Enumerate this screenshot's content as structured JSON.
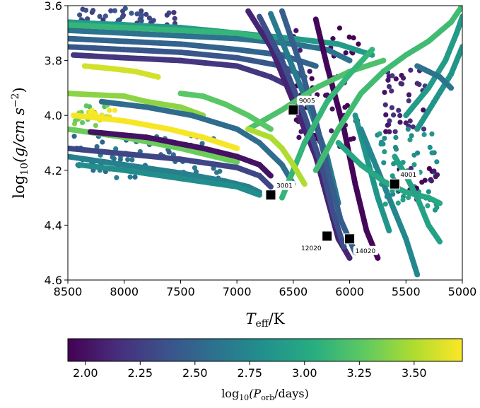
{
  "chart_data": {
    "type": "scatter",
    "xlabel_main": "T",
    "xlabel_sub": "eff",
    "xlabel_unit": "/K",
    "ylabel_pre": "log",
    "ylabel_sub": "10",
    "ylabel_body": "(g/cm s",
    "ylabel_sup": "−2",
    "ylabel_close": ")",
    "colorbar_label_pre": "log",
    "colorbar_label_sub": "10",
    "colorbar_label_body": "(P",
    "colorbar_label_sub2": "orb",
    "colorbar_label_close": "/days)",
    "xlim": [
      8500,
      5000
    ],
    "ylim": [
      4.6,
      3.6
    ],
    "x_ticks": [
      8500,
      8000,
      7500,
      7000,
      6500,
      6000,
      5500,
      5000
    ],
    "x_tick_labels": [
      "8500",
      "8000",
      "7500",
      "7000",
      "6500",
      "6000",
      "5500",
      "5000"
    ],
    "y_ticks": [
      3.6,
      3.8,
      4.0,
      4.2,
      4.4,
      4.6
    ],
    "y_tick_labels": [
      "3.6",
      "3.8",
      "4.0",
      "4.2",
      "4.4",
      "4.6"
    ],
    "colorbar_range": [
      1.92,
      3.72
    ],
    "colorbar_ticks": [
      2.0,
      2.25,
      2.5,
      2.75,
      3.0,
      3.25,
      3.5
    ],
    "colorbar_tick_labels": [
      "2.00",
      "2.25",
      "2.50",
      "2.75",
      "3.00",
      "3.25",
      "3.50"
    ],
    "colormap": "viridis",
    "highlighted_models": [
      {
        "label": "9005",
        "teff": 6500,
        "logg": 3.98,
        "label_pos": "top-right"
      },
      {
        "label": "3001",
        "teff": 6700,
        "logg": 4.29,
        "label_pos": "top-right"
      },
      {
        "label": "4001",
        "teff": 5600,
        "logg": 4.25,
        "label_pos": "top-right"
      },
      {
        "label": "12020",
        "teff": 6200,
        "logg": 4.44,
        "label_pos": "bottom-left"
      },
      {
        "label": "14020",
        "teff": 6000,
        "logg": 4.45,
        "label_pos": "bottom-right"
      }
    ],
    "tracks": [
      {
        "porb": 2.6,
        "points": [
          [
            8500,
            3.69
          ],
          [
            8000,
            3.7
          ],
          [
            7500,
            3.71
          ],
          [
            7000,
            3.72
          ],
          [
            6500,
            3.74
          ],
          [
            6200,
            3.76
          ],
          [
            6000,
            3.8
          ]
        ]
      },
      {
        "porb": 2.5,
        "points": [
          [
            8500,
            3.72
          ],
          [
            8000,
            3.73
          ],
          [
            7500,
            3.74
          ],
          [
            7000,
            3.76
          ],
          [
            6600,
            3.78
          ],
          [
            6300,
            3.82
          ]
        ]
      },
      {
        "porb": 2.4,
        "points": [
          [
            8500,
            3.75
          ],
          [
            8000,
            3.76
          ],
          [
            7500,
            3.77
          ],
          [
            7000,
            3.79
          ],
          [
            6600,
            3.82
          ],
          [
            6400,
            3.86
          ]
        ]
      },
      {
        "porb": 2.9,
        "points": [
          [
            8500,
            3.66
          ],
          [
            8000,
            3.67
          ],
          [
            7500,
            3.68
          ],
          [
            7000,
            3.7
          ],
          [
            6500,
            3.72
          ],
          [
            6100,
            3.74
          ],
          [
            5800,
            3.78
          ]
        ]
      },
      {
        "porb": 3.1,
        "points": [
          [
            8500,
            3.67
          ],
          [
            8000,
            3.68
          ],
          [
            7500,
            3.69
          ],
          [
            7000,
            3.7
          ],
          [
            6700,
            3.72
          ]
        ]
      },
      {
        "porb": 2.2,
        "points": [
          [
            8450,
            3.78
          ],
          [
            8000,
            3.79
          ],
          [
            7500,
            3.8
          ],
          [
            7000,
            3.82
          ],
          [
            6700,
            3.86
          ],
          [
            6500,
            3.9
          ]
        ]
      },
      {
        "porb": 3.6,
        "points": [
          [
            8350,
            3.82
          ],
          [
            8100,
            3.83
          ],
          [
            7900,
            3.84
          ],
          [
            7700,
            3.86
          ]
        ]
      },
      {
        "porb": 3.4,
        "points": [
          [
            8500,
            3.92
          ],
          [
            8000,
            3.93
          ],
          [
            7800,
            3.95
          ],
          [
            7500,
            3.97
          ],
          [
            7300,
            4.0
          ]
        ]
      },
      {
        "porb": 3.7,
        "points": [
          [
            8450,
            4.0
          ],
          [
            8000,
            4.02
          ],
          [
            7600,
            4.05
          ],
          [
            7300,
            4.08
          ],
          [
            7000,
            4.12
          ]
        ]
      },
      {
        "porb": 3.3,
        "points": [
          [
            8500,
            4.05
          ],
          [
            8000,
            4.08
          ],
          [
            7500,
            4.12
          ],
          [
            7200,
            4.15
          ],
          [
            7000,
            4.17
          ]
        ]
      },
      {
        "porb": 2.7,
        "points": [
          [
            8500,
            4.15
          ],
          [
            8000,
            4.18
          ],
          [
            7500,
            4.21
          ],
          [
            7100,
            4.24
          ],
          [
            6900,
            4.26
          ],
          [
            6800,
            4.28
          ]
        ]
      },
      {
        "porb": 2.3,
        "points": [
          [
            8500,
            4.12
          ],
          [
            8000,
            4.14
          ],
          [
            7500,
            4.16
          ],
          [
            7000,
            4.19
          ],
          [
            6800,
            4.22
          ],
          [
            6700,
            4.26
          ]
        ]
      },
      {
        "porb": 2.8,
        "points": [
          [
            8400,
            4.18
          ],
          [
            8000,
            4.2
          ],
          [
            7500,
            4.23
          ],
          [
            7000,
            4.26
          ],
          [
            6800,
            4.29
          ]
        ]
      },
      {
        "porb": 2.0,
        "points": [
          [
            8300,
            4.06
          ],
          [
            7800,
            4.08
          ],
          [
            7300,
            4.12
          ],
          [
            7000,
            4.15
          ],
          [
            6800,
            4.18
          ],
          [
            6700,
            4.22
          ]
        ]
      },
      {
        "porb": 2.55,
        "points": [
          [
            8200,
            3.95
          ],
          [
            7800,
            3.97
          ],
          [
            7400,
            4.0
          ],
          [
            7000,
            4.05
          ],
          [
            6800,
            4.1
          ],
          [
            6600,
            4.18
          ],
          [
            6500,
            4.25
          ]
        ]
      },
      {
        "porb": 2.1,
        "points": [
          [
            6900,
            3.62
          ],
          [
            6700,
            3.75
          ],
          [
            6500,
            3.95
          ],
          [
            6300,
            4.15
          ],
          [
            6200,
            4.3
          ],
          [
            6100,
            4.45
          ],
          [
            6000,
            4.52
          ]
        ]
      },
      {
        "porb": 2.35,
        "points": [
          [
            6800,
            3.64
          ],
          [
            6600,
            3.8
          ],
          [
            6400,
            4.0
          ],
          [
            6250,
            4.18
          ],
          [
            6150,
            4.35
          ],
          [
            6050,
            4.48
          ]
        ]
      },
      {
        "porb": 2.65,
        "points": [
          [
            6700,
            3.63
          ],
          [
            6550,
            3.78
          ],
          [
            6350,
            3.98
          ],
          [
            6200,
            4.15
          ],
          [
            6100,
            4.32
          ]
        ]
      },
      {
        "porb": 2.45,
        "points": [
          [
            6600,
            3.62
          ],
          [
            6450,
            3.8
          ],
          [
            6300,
            4.02
          ],
          [
            6180,
            4.22
          ],
          [
            6080,
            4.38
          ],
          [
            5950,
            4.5
          ]
        ]
      },
      {
        "porb": 1.95,
        "points": [
          [
            6300,
            3.65
          ],
          [
            6200,
            3.82
          ],
          [
            6050,
            4.05
          ],
          [
            5950,
            4.25
          ],
          [
            5850,
            4.42
          ],
          [
            5750,
            4.52
          ]
        ]
      },
      {
        "porb": 2.85,
        "points": [
          [
            5950,
            4.0
          ],
          [
            5850,
            4.15
          ],
          [
            5750,
            4.3
          ],
          [
            5650,
            4.42
          ]
        ]
      },
      {
        "porb": 2.75,
        "points": [
          [
            5900,
            4.05
          ],
          [
            5750,
            4.2
          ],
          [
            5600,
            4.35
          ],
          [
            5500,
            4.45
          ],
          [
            5400,
            4.58
          ]
        ]
      },
      {
        "porb": 3.0,
        "points": [
          [
            6100,
            4.1
          ],
          [
            5900,
            4.18
          ],
          [
            5700,
            4.24
          ],
          [
            5500,
            4.28
          ],
          [
            5300,
            4.3
          ],
          [
            5200,
            4.32
          ]
        ]
      },
      {
        "porb": 2.95,
        "points": [
          [
            5600,
            4.15
          ],
          [
            5500,
            4.22
          ],
          [
            5400,
            4.3
          ],
          [
            5300,
            4.4
          ],
          [
            5200,
            4.46
          ]
        ]
      },
      {
        "porb": 3.2,
        "points": [
          [
            6900,
            4.05
          ],
          [
            6600,
            3.98
          ],
          [
            6300,
            3.9
          ],
          [
            6000,
            3.84
          ],
          [
            5700,
            3.8
          ]
        ]
      },
      {
        "porb": 3.15,
        "points": [
          [
            6300,
            4.2
          ],
          [
            6100,
            4.05
          ],
          [
            5900,
            3.92
          ],
          [
            5700,
            3.84
          ],
          [
            5500,
            3.78
          ],
          [
            5300,
            3.73
          ],
          [
            5100,
            3.66
          ],
          [
            5000,
            3.6
          ]
        ]
      },
      {
        "porb": 2.9,
        "points": [
          [
            5500,
            4.0
          ],
          [
            5300,
            3.9
          ],
          [
            5150,
            3.8
          ],
          [
            5050,
            3.7
          ],
          [
            5000,
            3.64
          ]
        ]
      },
      {
        "porb": 2.85,
        "points": [
          [
            5400,
            4.05
          ],
          [
            5250,
            3.95
          ],
          [
            5100,
            3.85
          ],
          [
            5000,
            3.75
          ]
        ]
      },
      {
        "porb": 3.1,
        "points": [
          [
            6600,
            4.3
          ],
          [
            6400,
            4.1
          ],
          [
            6200,
            3.95
          ],
          [
            6000,
            3.85
          ],
          [
            5800,
            3.76
          ]
        ]
      },
      {
        "porb": 3.25,
        "points": [
          [
            7500,
            3.92
          ],
          [
            7300,
            3.93
          ],
          [
            7100,
            3.96
          ],
          [
            6900,
            4.0
          ],
          [
            6700,
            4.05
          ]
        ]
      },
      {
        "porb": 3.5,
        "points": [
          [
            6900,
            4.05
          ],
          [
            6700,
            4.08
          ],
          [
            6600,
            4.12
          ],
          [
            6500,
            4.18
          ],
          [
            6400,
            4.25
          ]
        ]
      },
      {
        "porb": 2.6,
        "points": [
          [
            5400,
            3.82
          ],
          [
            5300,
            3.84
          ],
          [
            5200,
            3.86
          ],
          [
            5100,
            3.9
          ]
        ]
      }
    ],
    "scatter_clusters": [
      {
        "porb": 2.3,
        "center": [
          8000,
          3.64
        ],
        "spread": [
          450,
          0.03
        ],
        "n": 40
      },
      {
        "porb": 1.95,
        "center": [
          6200,
          3.9
        ],
        "spread": [
          300,
          0.22
        ],
        "n": 50
      },
      {
        "porb": 2.1,
        "center": [
          5500,
          3.95
        ],
        "spread": [
          200,
          0.12
        ],
        "n": 40
      },
      {
        "porb": 2.6,
        "center": [
          7800,
          4.15
        ],
        "spread": [
          650,
          0.08
        ],
        "n": 70
      },
      {
        "porb": 2.85,
        "center": [
          5500,
          4.2
        ],
        "spread": [
          280,
          0.15
        ],
        "n": 60
      },
      {
        "porb": 2.0,
        "center": [
          5400,
          4.25
        ],
        "spread": [
          180,
          0.06
        ],
        "n": 20
      },
      {
        "porb": 3.3,
        "center": [
          8300,
          4.0
        ],
        "spread": [
          150,
          0.04
        ],
        "n": 18
      },
      {
        "porb": 3.7,
        "center": [
          8200,
          4.0
        ],
        "spread": [
          120,
          0.02
        ],
        "n": 14
      }
    ]
  }
}
